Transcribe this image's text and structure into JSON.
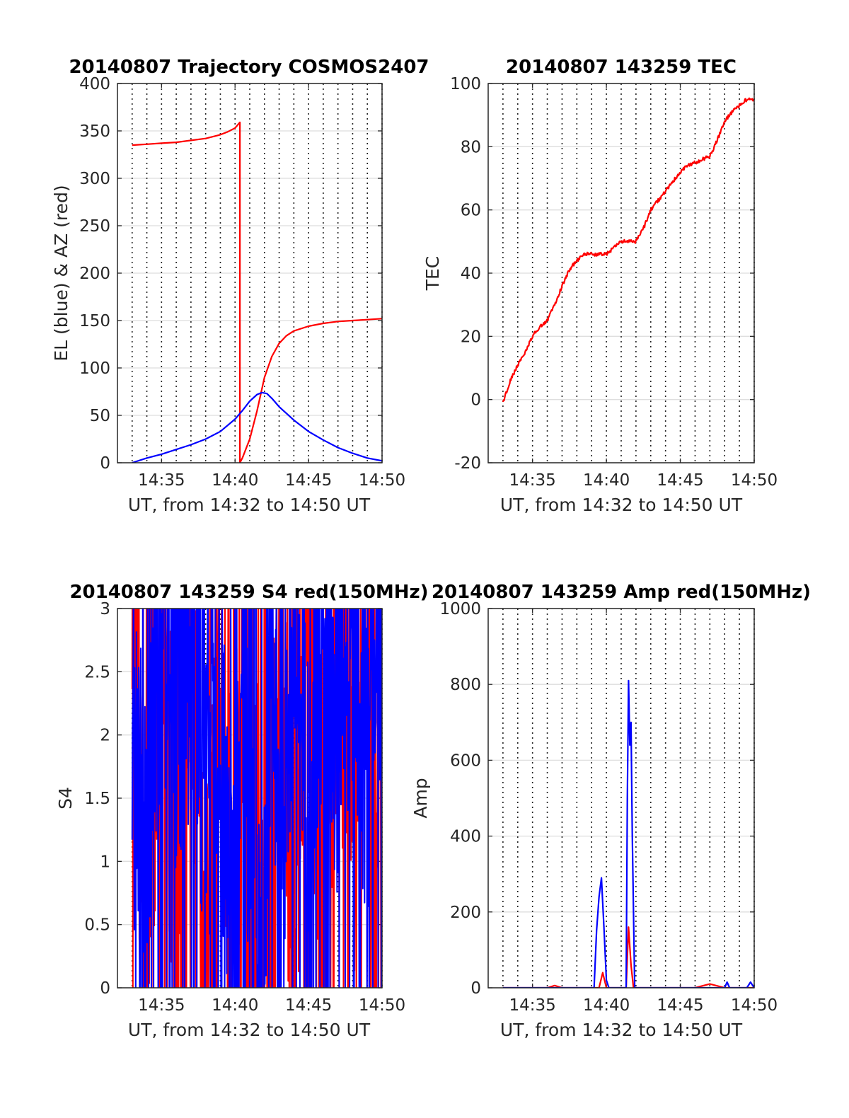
{
  "chart_data": [
    {
      "type": "line",
      "title": "20140807 Trajectory COSMOS2407",
      "xlabel": "UT, from 14:32 to 14:50 UT",
      "ylabel": "EL (blue) & AZ (red)",
      "xlim": [
        "14:32",
        "14:50"
      ],
      "ylim": [
        0,
        400
      ],
      "xticks": [
        "14:35",
        "14:40",
        "14:45",
        "14:50"
      ],
      "yticks": [
        0,
        50,
        100,
        150,
        200,
        250,
        300,
        350,
        400
      ],
      "grid": true,
      "series": [
        {
          "color": "#ff0000",
          "style": "line",
          "x": [
            "14:33",
            "14:34",
            "14:35",
            "14:36",
            "14:37",
            "14:38",
            "14:39",
            "14:39:30",
            "14:40",
            "14:40:20",
            "14:40:20",
            "14:40:30",
            "14:41",
            "14:41:30",
            "14:42",
            "14:42:30",
            "14:43",
            "14:43:30",
            "14:44",
            "14:45",
            "14:46",
            "14:47",
            "14:48",
            "14:49",
            "14:50"
          ],
          "y": [
            335,
            336,
            337,
            338,
            340,
            342,
            346,
            349,
            353,
            359,
            0,
            5,
            25,
            55,
            90,
            112,
            126,
            134,
            139,
            144,
            147,
            149,
            150,
            151,
            152
          ]
        },
        {
          "color": "#0000ff",
          "style": "line",
          "x": [
            "14:33",
            "14:34",
            "14:35",
            "14:36",
            "14:37",
            "14:38",
            "14:39",
            "14:40",
            "14:40:30",
            "14:41",
            "14:41:30",
            "14:41:50",
            "14:42:10",
            "14:42:30",
            "14:43",
            "14:44",
            "14:45",
            "14:46",
            "14:47",
            "14:48",
            "14:49",
            "14:50"
          ],
          "y": [
            0,
            5,
            9,
            14,
            19,
            25,
            33,
            46,
            55,
            65,
            72,
            74,
            73,
            68,
            59,
            45,
            33,
            24,
            16,
            10,
            5,
            2
          ]
        }
      ]
    },
    {
      "type": "line",
      "title": "20140807 143259 TEC",
      "xlabel": "UT, from 14:32 to 14:50 UT",
      "ylabel": "TEC",
      "xlim": [
        "14:32",
        "14:50"
      ],
      "ylim": [
        -20,
        100
      ],
      "xticks": [
        "14:35",
        "14:40",
        "14:45",
        "14:50"
      ],
      "yticks": [
        -20,
        0,
        20,
        40,
        60,
        80,
        100
      ],
      "grid": true,
      "series": [
        {
          "color": "#ff0000",
          "style": "line",
          "x": [
            "14:33",
            "14:33:30",
            "14:34",
            "14:34:30",
            "14:35",
            "14:35:30",
            "14:36",
            "14:36:30",
            "14:37",
            "14:37:30",
            "14:38",
            "14:38:30",
            "14:39",
            "14:39:30",
            "14:40",
            "14:40:30",
            "14:41",
            "14:41:30",
            "14:42",
            "14:42:30",
            "14:43",
            "14:43:30",
            "14:44",
            "14:44:30",
            "14:45",
            "14:45:30",
            "14:46",
            "14:46:30",
            "14:47",
            "14:47:30",
            "14:48",
            "14:48:30",
            "14:49",
            "14:49:30",
            "14:50"
          ],
          "y": [
            -1,
            6,
            11,
            15,
            20,
            23,
            25,
            30,
            36,
            41,
            44,
            46,
            46,
            46,
            46,
            48,
            50,
            50,
            50,
            54,
            60,
            63,
            66,
            69,
            72,
            74,
            75,
            76,
            77,
            82,
            88,
            91,
            93,
            95,
            95
          ]
        }
      ]
    },
    {
      "type": "line",
      "title": "20140807 143259 S4 red(150MHz)",
      "xlabel": "UT, from 14:32 to 14:50 UT",
      "ylabel": "S4",
      "xlim": [
        "14:32",
        "14:50"
      ],
      "ylim": [
        0,
        3
      ],
      "xticks": [
        "14:35",
        "14:40",
        "14:45",
        "14:50"
      ],
      "yticks": [
        0,
        0.5,
        1,
        1.5,
        2,
        2.5,
        3
      ],
      "grid": true,
      "series": [
        {
          "color": "#ff0000",
          "style": "noisy",
          "x": [
            "14:33",
            "14:34",
            "14:35",
            "14:36",
            "14:37",
            "14:38",
            "14:39",
            "14:39:30",
            "14:40",
            "14:40:30",
            "14:41",
            "14:41:30",
            "14:42",
            "14:42:30",
            "14:43",
            "14:44",
            "14:45",
            "14:46",
            "14:47",
            "14:48",
            "14:49",
            "14:50"
          ],
          "y": [
            3.0,
            0.0,
            3.0,
            0.5,
            3.0,
            0.3,
            2.3,
            1.0,
            1.6,
            1.0,
            0.8,
            1.2,
            0.2,
            1.6,
            3.0,
            0.0,
            3.0,
            0.5,
            3.0,
            1.2,
            3.0,
            1.9
          ]
        },
        {
          "color": "#0000ff",
          "style": "noisy",
          "x": [
            "14:33",
            "14:34",
            "14:35",
            "14:36",
            "14:37",
            "14:38",
            "14:39",
            "14:39:30",
            "14:40",
            "14:40:30",
            "14:41",
            "14:41:30",
            "14:42",
            "14:42:30",
            "14:43",
            "14:44",
            "14:45",
            "14:46",
            "14:47",
            "14:48",
            "14:49",
            "14:50"
          ],
          "y": [
            1.8,
            1.3,
            3.0,
            2.2,
            2.6,
            1.6,
            2.0,
            0.8,
            0.2,
            3.0,
            1.0,
            0.6,
            0.1,
            3.0,
            0.5,
            3.0,
            1.5,
            3.0,
            2.0,
            3.0,
            1.6,
            3.0
          ]
        }
      ]
    },
    {
      "type": "line",
      "title": "20140807 143259 Amp red(150MHz)",
      "xlabel": "UT, from 14:32 to 14:50 UT",
      "ylabel": "Amp",
      "xlim": [
        "14:32",
        "14:50"
      ],
      "ylim": [
        0,
        1000
      ],
      "xticks": [
        "14:35",
        "14:40",
        "14:45",
        "14:50"
      ],
      "yticks": [
        0,
        200,
        400,
        600,
        800,
        1000
      ],
      "grid": true,
      "series": [
        {
          "color": "#ff0000",
          "style": "line",
          "x": [
            "14:33",
            "14:36",
            "14:36:30",
            "14:37",
            "14:39:30",
            "14:39:45",
            "14:40",
            "14:41:20",
            "14:41:30",
            "14:41:40",
            "14:41:50",
            "14:46",
            "14:47",
            "14:48",
            "14:50"
          ],
          "y": [
            0,
            0,
            6,
            0,
            0,
            40,
            0,
            0,
            160,
            60,
            0,
            0,
            10,
            0,
            0
          ]
        },
        {
          "color": "#0000ff",
          "style": "line",
          "x": [
            "14:33",
            "14:39:10",
            "14:39:20",
            "14:39:30",
            "14:39:40",
            "14:39:50",
            "14:40",
            "14:40:10",
            "14:41:20",
            "14:41:25",
            "14:41:30",
            "14:41:35",
            "14:41:40",
            "14:41:45",
            "14:41:55",
            "14:47",
            "14:48",
            "14:48:10",
            "14:48:20",
            "14:49:30",
            "14:49:45",
            "14:50"
          ],
          "y": [
            0,
            0,
            150,
            240,
            290,
            160,
            20,
            0,
            0,
            500,
            810,
            640,
            700,
            400,
            0,
            0,
            0,
            15,
            0,
            0,
            15,
            0
          ]
        }
      ]
    }
  ]
}
